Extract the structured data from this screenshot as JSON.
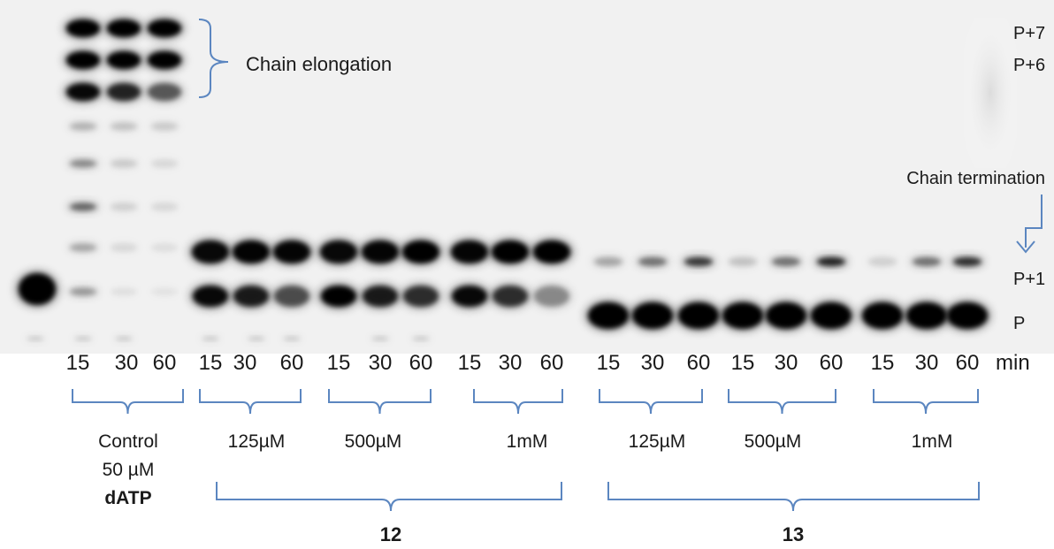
{
  "annotations": {
    "elongation": "Chain elongation",
    "termination": "Chain termination",
    "p7": "P+7",
    "p6": "P+6",
    "p1": "P+1",
    "p": "P"
  },
  "time_unit": "min",
  "time_labels": [
    "15",
    "30",
    "60",
    "15",
    "30",
    "60",
    "15",
    "30",
    "60",
    "15",
    "30",
    "60",
    "15",
    "30",
    "60",
    "15",
    "30",
    "60",
    "15",
    "30",
    "60"
  ],
  "control_label": [
    "Control",
    "50 µM",
    "dATP"
  ],
  "concentrations": [
    "125µM",
    "500µM",
    "1mM",
    "125µM",
    "500µM",
    "1mM"
  ],
  "compounds": [
    "12",
    "13"
  ],
  "colors": {
    "bracket": "#5b86c0",
    "band": "#0a0a0a",
    "background": "#f2f2f2"
  }
}
